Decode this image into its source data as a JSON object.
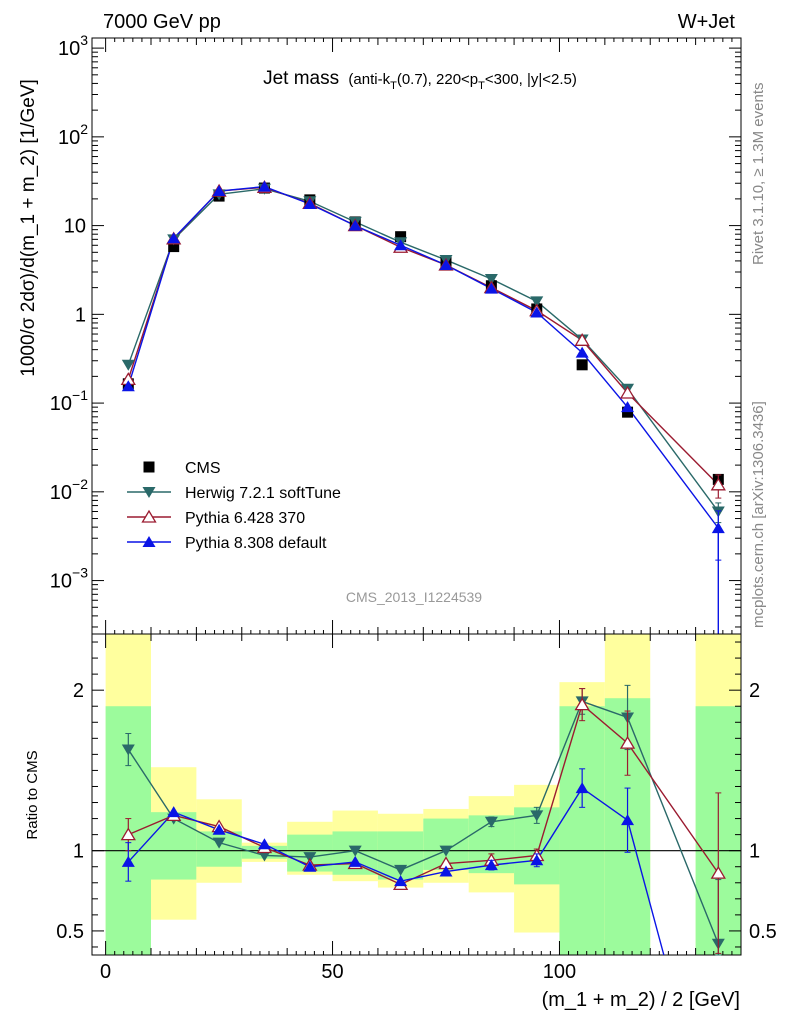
{
  "header": {
    "left": "7000 GeV pp",
    "right": "W+Jet"
  },
  "side": {
    "rivet": "Rivet 3.1.10, ≥ 1.3M events",
    "mcplots": "mcplots.cern.ch [arXiv:1306.3436]"
  },
  "chart_data": [
    {
      "type": "scatter",
      "title": "Jet mass",
      "title_detail": "(anti-k_T(0.7), 220<p_T<300, |y|<2.5)",
      "title_parts": {
        "p1": "(anti-k",
        "s1": "T",
        "p2": "(0.7), 220<p",
        "s2": "T",
        "p3": "<300, |y|<2.5)"
      },
      "watermark": "CMS_2013_I1224539",
      "ylabel": "1000/σ 2dσ)/d(m_1 + m_2) [1/GeV]",
      "yscale": "log",
      "ylim": [
        0.00025,
        1300
      ],
      "xlim": [
        -3,
        140
      ],
      "y_ticks": [
        {
          "value": 0.001,
          "base": "10",
          "exp": "−3"
        },
        {
          "value": 0.01,
          "base": "10",
          "exp": "−2"
        },
        {
          "value": 0.1,
          "base": "10",
          "exp": "−1"
        },
        {
          "value": 1,
          "base": "1",
          "exp": ""
        },
        {
          "value": 10,
          "base": "10",
          "exp": ""
        },
        {
          "value": 100,
          "base": "10",
          "exp": "2"
        },
        {
          "value": 1000,
          "base": "10",
          "exp": "3"
        }
      ],
      "legend_position": "bottom-left",
      "series": [
        {
          "name": "CMS",
          "marker": "square",
          "color": "#000000",
          "x": [
            5,
            15,
            25,
            35,
            45,
            55,
            65,
            75,
            85,
            95,
            105,
            115,
            135
          ],
          "y": [
            0.165,
            5.8,
            21.5,
            26.5,
            19.5,
            11.0,
            7.5,
            3.9,
            2.1,
            1.15,
            0.27,
            0.079,
            0.0138
          ]
        },
        {
          "name": "Herwig 7.2.1 softTune",
          "marker": "triangle-down",
          "color": "#2a6969",
          "x": [
            5,
            15,
            25,
            35,
            45,
            55,
            65,
            75,
            85,
            95,
            105,
            115,
            135
          ],
          "y": [
            0.27,
            7.0,
            22.5,
            26.0,
            18.8,
            11.0,
            6.5,
            4.1,
            2.5,
            1.4,
            0.52,
            0.145,
            0.006
          ],
          "yerr": [
            0,
            0,
            0,
            0,
            0,
            0,
            0,
            0,
            0,
            0,
            0,
            0,
            0.0015
          ]
        },
        {
          "name": "Pythia 6.428 370",
          "marker": "triangle-up-open",
          "color": "#9b1b30",
          "x": [
            5,
            15,
            25,
            35,
            45,
            55,
            65,
            75,
            85,
            95,
            105,
            115,
            135
          ],
          "y": [
            0.185,
            7.1,
            24.5,
            27.0,
            17.8,
            10.0,
            5.7,
            3.6,
            2.0,
            1.1,
            0.51,
            0.13,
            0.012
          ],
          "yerr": [
            0,
            0,
            0,
            0,
            0,
            0,
            0,
            0,
            0,
            0,
            0,
            0,
            0.0035
          ]
        },
        {
          "name": "Pythia 8.308 default",
          "marker": "triangle-up",
          "color": "#0a14e6",
          "x": [
            5,
            15,
            25,
            35,
            45,
            55,
            65,
            75,
            85,
            95,
            105,
            115,
            135
          ],
          "y": [
            0.155,
            7.2,
            24.5,
            27.5,
            17.5,
            10.0,
            6.0,
            3.6,
            1.95,
            1.05,
            0.37,
            0.09,
            0.0039
          ],
          "yerr": [
            0,
            0,
            0,
            0,
            0,
            0,
            0,
            0,
            0,
            0,
            0,
            0,
            0.0022
          ]
        }
      ]
    },
    {
      "type": "scatter",
      "ylabel": "Ratio to CMS",
      "xlabel": "(m_1 + m_2) / 2 [GeV]",
      "ylim": [
        0.35,
        2.35
      ],
      "xlim": [
        -3,
        140
      ],
      "x_ticks": [
        0,
        50,
        100
      ],
      "y_ticks": [
        0.5,
        1,
        2
      ],
      "reference_line": 1,
      "bands": {
        "bins": [
          [
            0,
            10
          ],
          [
            10,
            20
          ],
          [
            20,
            30
          ],
          [
            30,
            40
          ],
          [
            40,
            50
          ],
          [
            50,
            60
          ],
          [
            60,
            70
          ],
          [
            70,
            80
          ],
          [
            80,
            90
          ],
          [
            90,
            100
          ],
          [
            100,
            110
          ],
          [
            110,
            120
          ],
          [
            130,
            140
          ]
        ],
        "green": [
          [
            0.35,
            1.9
          ],
          [
            0.82,
            1.24
          ],
          [
            0.9,
            1.12
          ],
          [
            0.95,
            1.03
          ],
          [
            0.87,
            1.1
          ],
          [
            0.85,
            1.12
          ],
          [
            0.82,
            1.12
          ],
          [
            0.88,
            1.2
          ],
          [
            0.86,
            1.22
          ],
          [
            0.79,
            1.27
          ],
          [
            0.35,
            1.9
          ],
          [
            0.35,
            1.95
          ],
          [
            0.35,
            1.9
          ]
        ],
        "yellow": [
          [
            0.35,
            2.35
          ],
          [
            0.57,
            1.52
          ],
          [
            0.8,
            1.32
          ],
          [
            0.93,
            1.05
          ],
          [
            0.85,
            1.18
          ],
          [
            0.81,
            1.25
          ],
          [
            0.77,
            1.23
          ],
          [
            0.8,
            1.26
          ],
          [
            0.74,
            1.34
          ],
          [
            0.49,
            1.41
          ],
          [
            0.35,
            2.05
          ],
          [
            0.35,
            2.35
          ],
          [
            0.35,
            2.35
          ]
        ],
        "green_color": "#9cfb9c",
        "yellow_color": "#ffff9e"
      },
      "series": [
        {
          "name": "Herwig 7.2.1 softTune",
          "marker": "triangle-down",
          "color": "#2a6969",
          "x": [
            5,
            15,
            25,
            35,
            45,
            55,
            65,
            75,
            85,
            95,
            105,
            115,
            135
          ],
          "y": [
            1.63,
            1.2,
            1.05,
            0.97,
            0.96,
            1.0,
            0.88,
            1.0,
            1.18,
            1.22,
            1.93,
            1.83,
            0.42
          ],
          "yerr": [
            0.1,
            0,
            0,
            0,
            0,
            0,
            0,
            0,
            0.03,
            0.05,
            0.08,
            0.2,
            0.4
          ]
        },
        {
          "name": "Pythia 6.428 370",
          "marker": "triangle-up-open",
          "color": "#9b1b30",
          "x": [
            5,
            15,
            25,
            35,
            45,
            55,
            65,
            75,
            85,
            95,
            105,
            115,
            135
          ],
          "y": [
            1.1,
            1.22,
            1.15,
            1.02,
            0.91,
            0.92,
            0.79,
            0.92,
            0.94,
            0.97,
            1.91,
            1.67,
            0.86
          ],
          "yerr": [
            0.1,
            0,
            0,
            0,
            0,
            0,
            0,
            0,
            0.04,
            0.04,
            0.1,
            0.2,
            0.5
          ]
        },
        {
          "name": "Pythia 8.308 default",
          "marker": "triangle-up",
          "color": "#0a14e6",
          "x": [
            5,
            15,
            25,
            35,
            45,
            55,
            65,
            75,
            85,
            95,
            105,
            115
          ],
          "y": [
            0.93,
            1.24,
            1.13,
            1.04,
            0.9,
            0.93,
            0.81,
            0.87,
            0.91,
            0.94,
            1.39,
            1.19
          ],
          "yerr": [
            0.12,
            0,
            0,
            0,
            0,
            0,
            0,
            0,
            0.03,
            0.04,
            0.12,
            0.2
          ],
          "tail_to": [
            123,
            0.35
          ]
        }
      ]
    }
  ]
}
